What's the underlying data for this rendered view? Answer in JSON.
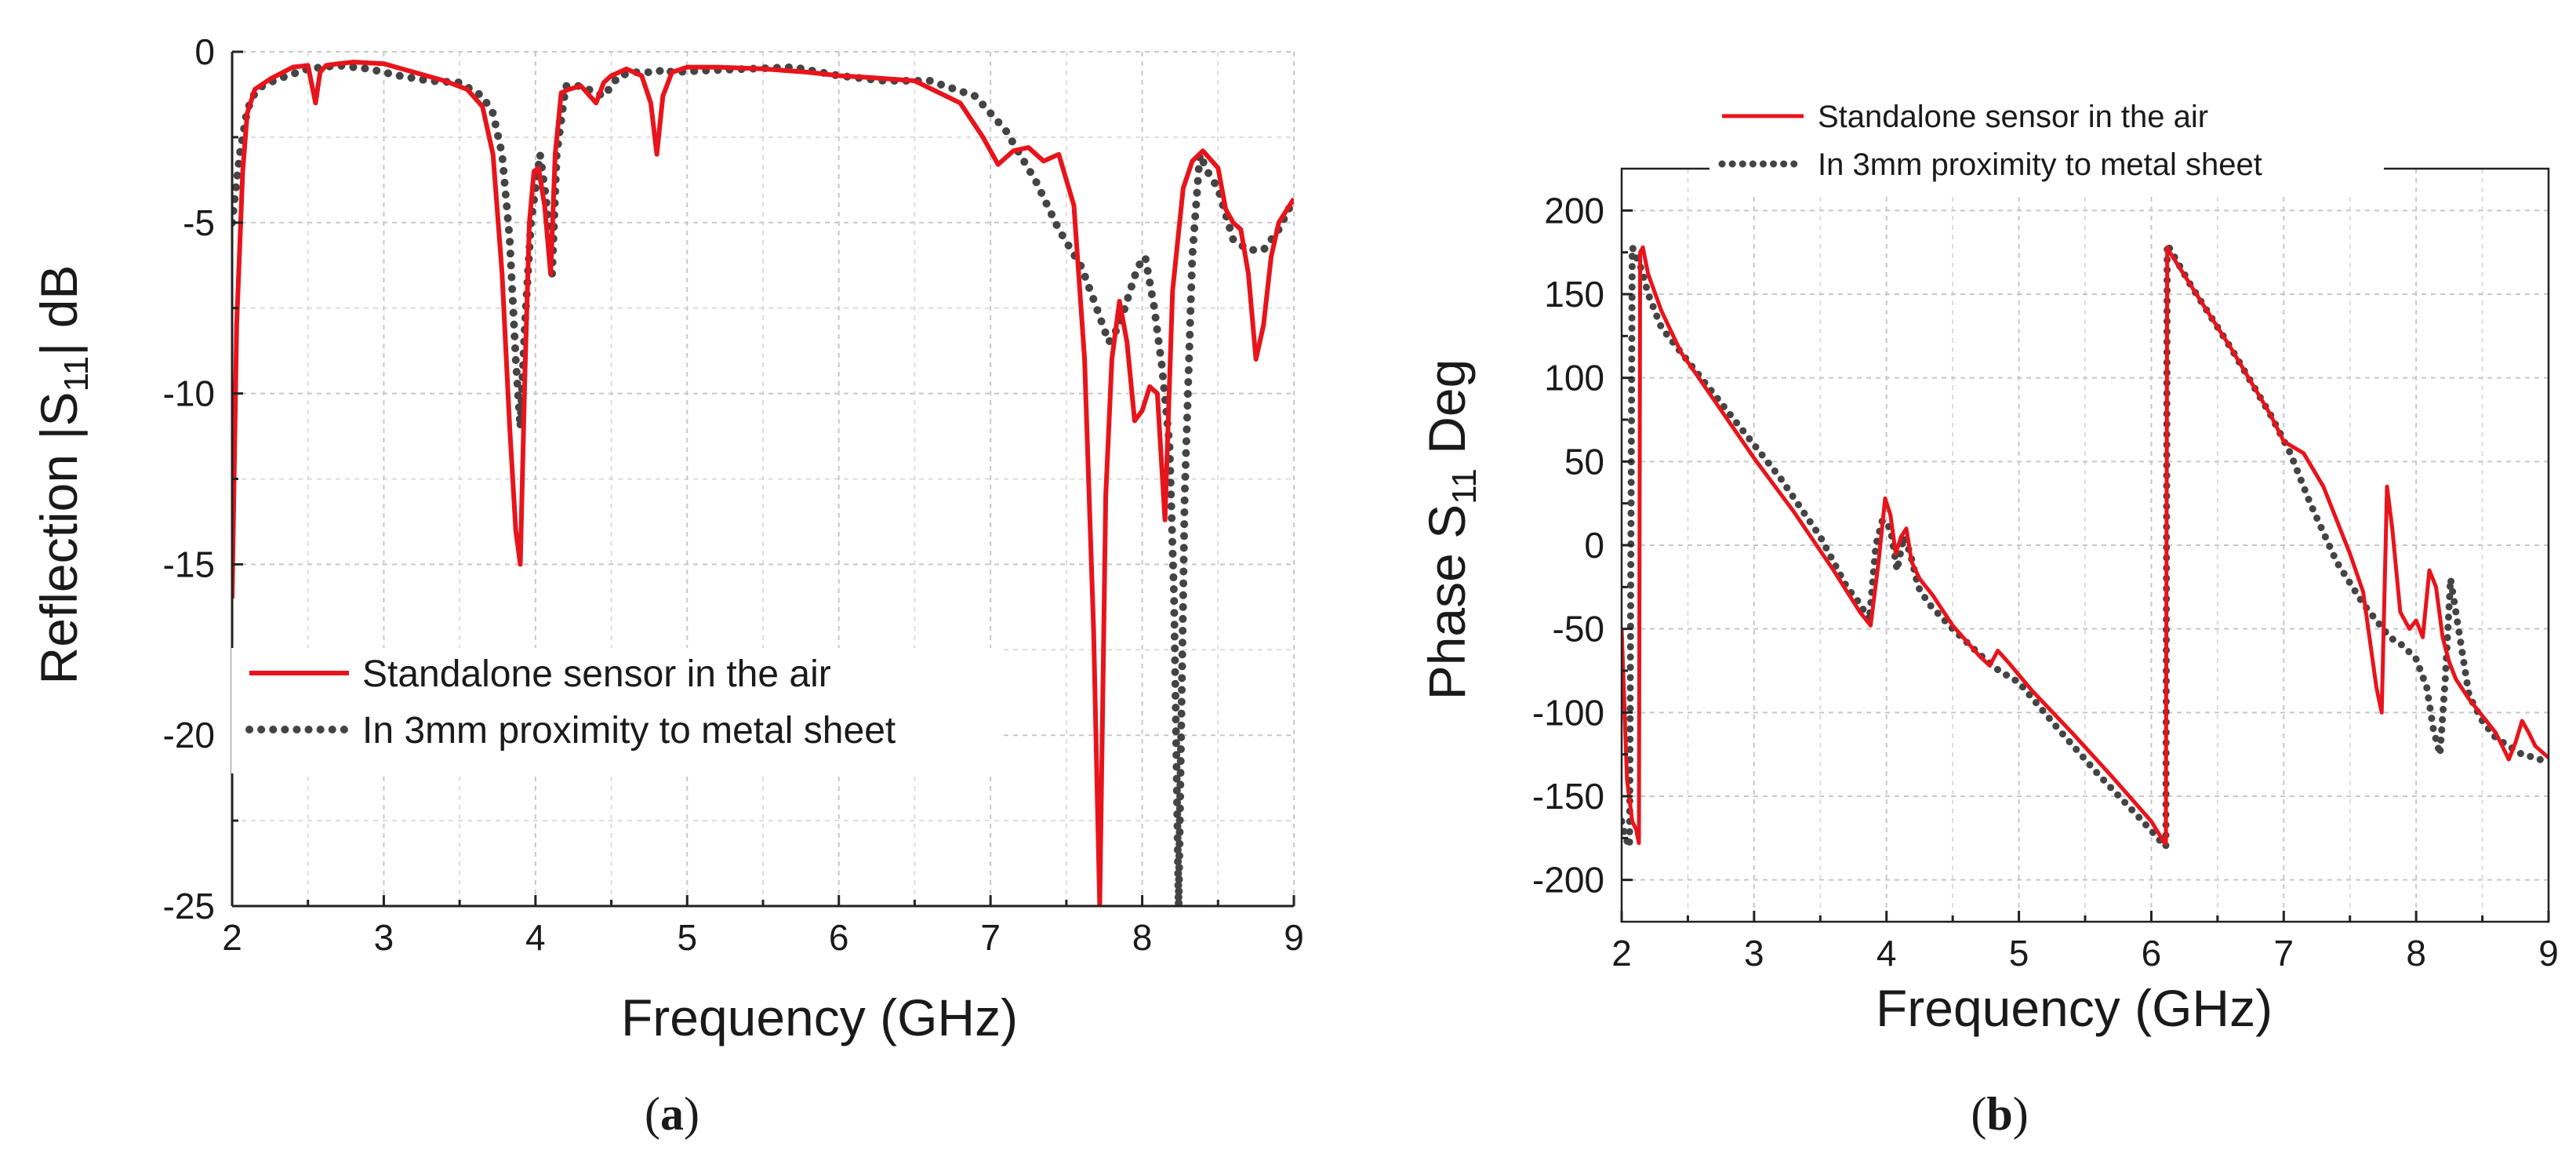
{
  "colors": {
    "series_air": "#e8141b",
    "series_metal": "#444444",
    "axis": "#222222",
    "grid": "#c8c8c8"
  },
  "chart_data": [
    {
      "type": "line",
      "panel_label": {
        "open": "(",
        "letter": "a",
        "close": ")"
      },
      "xlabel": "Frequency (GHz)",
      "ylabel": {
        "prefix": "Reflection |S",
        "subscript": "11",
        "suffix": "| dB"
      },
      "xlim": [
        2,
        9
      ],
      "ylim": [
        -25,
        0
      ],
      "xticks": [
        2,
        3,
        4,
        5,
        6,
        7,
        8,
        9
      ],
      "yticks": [
        0,
        -5,
        -10,
        -15,
        -20,
        -25
      ],
      "grid": true,
      "legend": {
        "placement": "lower-left",
        "entries": [
          "Standalone sensor in the air",
          "In 3mm proximity to metal sheet"
        ]
      },
      "series": [
        {
          "name": "Standalone sensor in the air",
          "style": "solid",
          "x": [
            2.0,
            2.03,
            2.07,
            2.1,
            2.15,
            2.25,
            2.4,
            2.5,
            2.55,
            2.58,
            2.62,
            2.7,
            2.8,
            3.0,
            3.2,
            3.4,
            3.55,
            3.65,
            3.72,
            3.78,
            3.83,
            3.87,
            3.9,
            3.93,
            3.96,
            3.99,
            4.02,
            4.06,
            4.1,
            4.13,
            4.17,
            4.22,
            4.3,
            4.4,
            4.45,
            4.5,
            4.6,
            4.7,
            4.76,
            4.8,
            4.84,
            4.9,
            5.0,
            5.2,
            5.5,
            5.8,
            6.0,
            6.2,
            6.5,
            6.8,
            6.95,
            7.05,
            7.15,
            7.25,
            7.35,
            7.45,
            7.55,
            7.62,
            7.68,
            7.72,
            7.76,
            7.8,
            7.85,
            7.9,
            7.95,
            8.0,
            8.05,
            8.1,
            8.15,
            8.2,
            8.27,
            8.33,
            8.4,
            8.5,
            8.55,
            8.6,
            8.65,
            8.7,
            8.75,
            8.8,
            8.85,
            8.9,
            9.0
          ],
          "y": [
            -16,
            -8,
            -3.5,
            -1.8,
            -1.1,
            -0.8,
            -0.45,
            -0.4,
            -1.5,
            -0.6,
            -0.4,
            -0.35,
            -0.3,
            -0.35,
            -0.6,
            -0.85,
            -1.1,
            -1.6,
            -3.0,
            -6.5,
            -11.0,
            -14.0,
            -15.0,
            -9.5,
            -5.0,
            -3.5,
            -3.4,
            -4.5,
            -6.5,
            -3.0,
            -1.2,
            -1.1,
            -1.0,
            -1.5,
            -0.9,
            -0.7,
            -0.5,
            -0.7,
            -1.5,
            -3.0,
            -1.3,
            -0.6,
            -0.45,
            -0.45,
            -0.5,
            -0.6,
            -0.7,
            -0.75,
            -0.85,
            -1.5,
            -2.5,
            -3.3,
            -2.9,
            -2.8,
            -3.2,
            -3.0,
            -4.5,
            -9.0,
            -17.0,
            -25.0,
            -13.0,
            -9.0,
            -7.3,
            -8.5,
            -10.8,
            -10.5,
            -9.8,
            -10.0,
            -13.7,
            -7.0,
            -4.0,
            -3.2,
            -2.9,
            -3.4,
            -4.6,
            -5.0,
            -5.2,
            -6.5,
            -9.0,
            -8.0,
            -6.0,
            -5.0,
            -4.3
          ]
        },
        {
          "name": "In 3mm proximity to metal sheet",
          "style": "dotted",
          "x": [
            2.0,
            2.05,
            2.1,
            2.15,
            2.2,
            2.3,
            2.5,
            2.7,
            2.9,
            3.1,
            3.3,
            3.5,
            3.65,
            3.72,
            3.78,
            3.83,
            3.87,
            3.9,
            3.93,
            3.97,
            4.0,
            4.03,
            4.07,
            4.11,
            4.14,
            4.2,
            4.3,
            4.45,
            4.55,
            4.65,
            4.75,
            4.8,
            4.85,
            4.9,
            5.1,
            5.4,
            5.7,
            6.0,
            6.3,
            6.6,
            6.9,
            7.1,
            7.3,
            7.45,
            7.6,
            7.7,
            7.78,
            7.85,
            7.92,
            7.97,
            8.02,
            8.08,
            8.13,
            8.18,
            8.21,
            8.24,
            8.28,
            8.33,
            8.38,
            8.43,
            8.5,
            8.6,
            8.7,
            8.8,
            8.9,
            9.0
          ],
          "y": [
            -5.0,
            -3.0,
            -1.7,
            -1.2,
            -1.0,
            -0.8,
            -0.5,
            -0.4,
            -0.5,
            -0.7,
            -0.85,
            -0.9,
            -1.3,
            -1.8,
            -3.0,
            -5.5,
            -9.0,
            -11.0,
            -8.0,
            -5.0,
            -4.0,
            -3.0,
            -4.3,
            -6.5,
            -3.0,
            -1.0,
            -1.0,
            -1.3,
            -0.7,
            -0.6,
            -0.6,
            -0.6,
            -0.5,
            -0.6,
            -0.55,
            -0.5,
            -0.45,
            -0.7,
            -0.85,
            -0.85,
            -1.3,
            -2.3,
            -3.8,
            -5.2,
            -6.3,
            -7.5,
            -8.5,
            -8.0,
            -7.0,
            -6.3,
            -6.0,
            -7.5,
            -9.2,
            -11.5,
            -16.0,
            -25.0,
            -13.0,
            -6.0,
            -3.0,
            -3.5,
            -4.0,
            -5.5,
            -5.8,
            -5.8,
            -5.2,
            -4.3
          ]
        }
      ]
    },
    {
      "type": "line",
      "panel_label": {
        "open": "(",
        "letter": "b",
        "close": ")"
      },
      "xlabel": "Frequency (GHz)",
      "ylabel": {
        "prefix": "Phase S",
        "subscript": "11",
        "suffix": " Deg"
      },
      "xlim": [
        2,
        9
      ],
      "ylim": [
        -225,
        225
      ],
      "xticks": [
        2,
        3,
        4,
        5,
        6,
        7,
        8,
        9
      ],
      "yticks": [
        200,
        150,
        100,
        50,
        0,
        -50,
        -100,
        -150,
        -200
      ],
      "grid": true,
      "legend": {
        "placement": "top",
        "entries": [
          "Standalone sensor in the air",
          "In 3mm proximity to metal sheet"
        ]
      },
      "series": [
        {
          "name": "Standalone sensor in the air",
          "style": "solid",
          "x": [
            2.0,
            2.04,
            2.08,
            2.11,
            2.13,
            2.14,
            2.16,
            2.2,
            2.3,
            2.45,
            2.6,
            2.8,
            3.0,
            3.3,
            3.6,
            3.8,
            3.88,
            3.94,
            3.99,
            4.03,
            4.07,
            4.11,
            4.15,
            4.19,
            4.25,
            4.35,
            4.5,
            4.7,
            4.78,
            4.84,
            4.92,
            5.1,
            5.4,
            5.7,
            6.0,
            6.1,
            6.11,
            6.12,
            6.14,
            6.3,
            6.6,
            6.9,
            7.0,
            7.15,
            7.3,
            7.5,
            7.6,
            7.7,
            7.74,
            7.78,
            7.82,
            7.88,
            7.95,
            8.0,
            8.05,
            8.1,
            8.15,
            8.2,
            8.25,
            8.3,
            8.4,
            8.5,
            8.6,
            8.7,
            8.75,
            8.8,
            8.85,
            8.9,
            9.0
          ],
          "y": [
            -50,
            -140,
            -165,
            -170,
            -178,
            175,
            178,
            162,
            140,
            115,
            98,
            75,
            52,
            20,
            -15,
            -40,
            -48,
            -10,
            28,
            18,
            -5,
            5,
            10,
            -10,
            -20,
            -30,
            -48,
            -66,
            -72,
            -63,
            -70,
            -87,
            -112,
            -138,
            -165,
            -178,
            -178,
            178,
            175,
            155,
            118,
            78,
            62,
            55,
            35,
            -5,
            -28,
            -85,
            -100,
            35,
            10,
            -40,
            -50,
            -45,
            -55,
            -15,
            -25,
            -55,
            -70,
            -80,
            -92,
            -102,
            -112,
            -128,
            -118,
            -105,
            -112,
            -120,
            -127
          ]
        },
        {
          "name": "In 3mm proximity to metal sheet",
          "style": "dotted",
          "x": [
            2.0,
            2.03,
            2.06,
            2.08,
            2.1,
            2.12,
            2.15,
            2.2,
            2.3,
            2.5,
            2.7,
            2.9,
            3.2,
            3.5,
            3.7,
            3.8,
            3.87,
            3.92,
            3.97,
            4.03,
            4.08,
            4.13,
            4.18,
            4.24,
            4.32,
            4.5,
            4.7,
            4.85,
            5.0,
            5.3,
            5.6,
            5.9,
            6.05,
            6.1,
            6.11,
            6.12,
            6.14,
            6.3,
            6.6,
            6.9,
            7.05,
            7.2,
            7.4,
            7.6,
            7.7,
            7.8,
            7.9,
            8.0,
            8.08,
            8.13,
            8.18,
            8.22,
            8.26,
            8.3,
            8.4,
            8.5,
            8.6,
            8.7,
            8.8,
            8.9,
            9.0
          ],
          "y": [
            -165,
            -175,
            -180,
            178,
            175,
            170,
            165,
            150,
            130,
            110,
            90,
            70,
            40,
            5,
            -25,
            -35,
            -45,
            0,
            15,
            10,
            -15,
            5,
            -5,
            -25,
            -35,
            -50,
            -65,
            -75,
            -82,
            -110,
            -137,
            -162,
            -175,
            -180,
            -180,
            180,
            177,
            155,
            118,
            78,
            55,
            25,
            -10,
            -35,
            -45,
            -55,
            -60,
            -68,
            -85,
            -110,
            -125,
            -80,
            -20,
            -40,
            -90,
            -105,
            -115,
            -120,
            -125,
            -127,
            -130
          ]
        }
      ]
    }
  ]
}
